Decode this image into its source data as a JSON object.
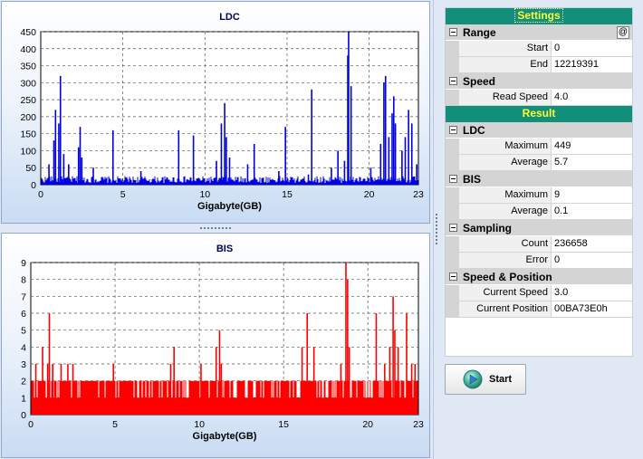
{
  "charts": {
    "ldc": {
      "title": "LDC",
      "xlabel": "Gigabyte(GB)",
      "x_ticks": [
        "0",
        "5",
        "10",
        "15",
        "20",
        "23"
      ],
      "y_ticks": [
        "0",
        "50",
        "100",
        "150",
        "200",
        "250",
        "300",
        "350",
        "400",
        "450"
      ],
      "color": "#0000e0"
    },
    "bis": {
      "title": "BIS",
      "xlabel": "Gigabyte(GB)",
      "x_ticks": [
        "0",
        "5",
        "10",
        "15",
        "20",
        "23"
      ],
      "y_ticks": [
        "0",
        "1",
        "2",
        "3",
        "4",
        "5",
        "6",
        "7",
        "8",
        "9"
      ],
      "color": "#ff0000"
    }
  },
  "chart_data": [
    {
      "type": "bar",
      "title": "LDC",
      "xlabel": "Gigabyte(GB)",
      "ylabel": "",
      "xlim": [
        0,
        23
      ],
      "ylim": [
        0,
        450
      ],
      "grid": true,
      "baseline_range": [
        5,
        25
      ],
      "spikes": [
        {
          "x": 0.5,
          "y": 60
        },
        {
          "x": 0.8,
          "y": 130
        },
        {
          "x": 0.9,
          "y": 220
        },
        {
          "x": 1.1,
          "y": 180
        },
        {
          "x": 1.2,
          "y": 320
        },
        {
          "x": 1.4,
          "y": 90
        },
        {
          "x": 1.7,
          "y": 60
        },
        {
          "x": 2.3,
          "y": 110
        },
        {
          "x": 2.4,
          "y": 170
        },
        {
          "x": 2.5,
          "y": 80
        },
        {
          "x": 3.2,
          "y": 50
        },
        {
          "x": 4.4,
          "y": 160
        },
        {
          "x": 6.1,
          "y": 40
        },
        {
          "x": 8.4,
          "y": 160
        },
        {
          "x": 9.3,
          "y": 145
        },
        {
          "x": 10.7,
          "y": 70
        },
        {
          "x": 11.0,
          "y": 180
        },
        {
          "x": 11.2,
          "y": 240
        },
        {
          "x": 11.3,
          "y": 140
        },
        {
          "x": 11.5,
          "y": 80
        },
        {
          "x": 12.6,
          "y": 60
        },
        {
          "x": 13.0,
          "y": 120
        },
        {
          "x": 14.5,
          "y": 40
        },
        {
          "x": 14.9,
          "y": 170
        },
        {
          "x": 16.3,
          "y": 30
        },
        {
          "x": 16.5,
          "y": 280
        },
        {
          "x": 17.7,
          "y": 50
        },
        {
          "x": 18.1,
          "y": 100
        },
        {
          "x": 18.5,
          "y": 70
        },
        {
          "x": 18.7,
          "y": 380
        },
        {
          "x": 18.75,
          "y": 449
        },
        {
          "x": 18.9,
          "y": 290
        },
        {
          "x": 20.1,
          "y": 50
        },
        {
          "x": 20.7,
          "y": 120
        },
        {
          "x": 20.9,
          "y": 300
        },
        {
          "x": 21.0,
          "y": 320
        },
        {
          "x": 21.2,
          "y": 140
        },
        {
          "x": 21.4,
          "y": 210
        },
        {
          "x": 21.5,
          "y": 260
        },
        {
          "x": 21.6,
          "y": 180
        },
        {
          "x": 22.0,
          "y": 100
        },
        {
          "x": 22.2,
          "y": 140
        },
        {
          "x": 22.4,
          "y": 220
        },
        {
          "x": 22.6,
          "y": 180
        },
        {
          "x": 22.9,
          "y": 60
        }
      ]
    },
    {
      "type": "bar",
      "title": "BIS",
      "xlabel": "Gigabyte(GB)",
      "ylabel": "",
      "xlim": [
        0,
        23
      ],
      "ylim": [
        0,
        9
      ],
      "grid": true,
      "baseline_range": [
        1,
        2
      ],
      "spikes": [
        {
          "x": 0.3,
          "y": 3
        },
        {
          "x": 0.7,
          "y": 4
        },
        {
          "x": 1.0,
          "y": 3
        },
        {
          "x": 1.1,
          "y": 6
        },
        {
          "x": 1.3,
          "y": 3
        },
        {
          "x": 1.8,
          "y": 3
        },
        {
          "x": 2.2,
          "y": 3
        },
        {
          "x": 2.5,
          "y": 3
        },
        {
          "x": 4.9,
          "y": 3
        },
        {
          "x": 8.3,
          "y": 3
        },
        {
          "x": 8.5,
          "y": 4
        },
        {
          "x": 10.1,
          "y": 3
        },
        {
          "x": 11.0,
          "y": 4
        },
        {
          "x": 11.2,
          "y": 5
        },
        {
          "x": 11.3,
          "y": 3
        },
        {
          "x": 16.1,
          "y": 4
        },
        {
          "x": 16.4,
          "y": 6
        },
        {
          "x": 16.8,
          "y": 4
        },
        {
          "x": 18.4,
          "y": 3
        },
        {
          "x": 18.7,
          "y": 9
        },
        {
          "x": 18.8,
          "y": 8
        },
        {
          "x": 18.9,
          "y": 4
        },
        {
          "x": 20.5,
          "y": 6
        },
        {
          "x": 21.0,
          "y": 3
        },
        {
          "x": 21.3,
          "y": 4
        },
        {
          "x": 21.5,
          "y": 7
        },
        {
          "x": 21.6,
          "y": 5
        },
        {
          "x": 21.8,
          "y": 4
        },
        {
          "x": 22.3,
          "y": 6
        },
        {
          "x": 22.6,
          "y": 3
        },
        {
          "x": 22.8,
          "y": 3
        }
      ]
    }
  ],
  "panel": {
    "settings_title": "Settings",
    "result_title": "Result",
    "range": {
      "label": "Range",
      "at_button": "@",
      "start_label": "Start",
      "start_value": "0",
      "end_label": "End",
      "end_value": "12219391"
    },
    "speed": {
      "label": "Speed",
      "read_speed_label": "Read Speed",
      "read_speed_value": "4.0"
    },
    "ldc": {
      "label": "LDC",
      "maximum_label": "Maximum",
      "maximum_value": "449",
      "average_label": "Average",
      "average_value": "5.7"
    },
    "bis": {
      "label": "BIS",
      "maximum_label": "Maximum",
      "maximum_value": "9",
      "average_label": "Average",
      "average_value": "0.1"
    },
    "sampling": {
      "label": "Sampling",
      "count_label": "Count",
      "count_value": "236658",
      "error_label": "Error",
      "error_value": "0"
    },
    "speed_position": {
      "label": "Speed & Position",
      "current_speed_label": "Current Speed",
      "current_speed_value": "3.0",
      "current_position_label": "Current Position",
      "current_position_value": "00BA73E0h"
    }
  },
  "start_button": {
    "label": "Start",
    "icon": "play-icon"
  },
  "colors": {
    "title_bar": "#118f7a",
    "title_text": "#ffff33",
    "ldc_bar": "#0000e0",
    "bis_bar": "#ff0000"
  }
}
